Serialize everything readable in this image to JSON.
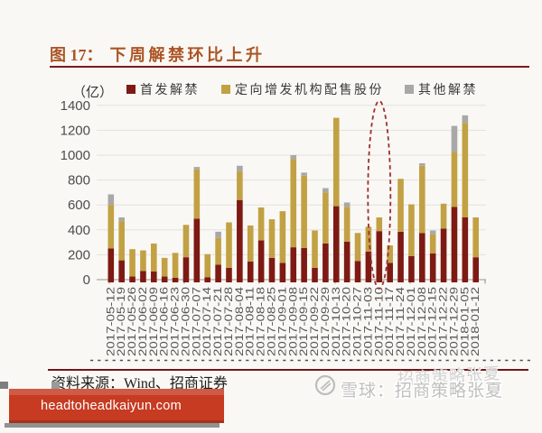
{
  "title": {
    "label": "图 17：",
    "text": "下周解禁环比上升"
  },
  "chart_data": {
    "type": "bar",
    "stacked": true,
    "unit": "（亿）",
    "ylabel": "",
    "xlabel": "",
    "ylim": [
      0,
      1400
    ],
    "y_ticks": [
      0,
      200,
      400,
      600,
      800,
      1000,
      1200,
      1400
    ],
    "grid": true,
    "legend_position": "top",
    "categories": [
      "2017-05-12",
      "2017-05-19",
      "2017-05-26",
      "2017-06-02",
      "2017-06-09",
      "2017-06-16",
      "2017-06-23",
      "2017-06-30",
      "2017-07-07",
      "2017-07-14",
      "2017-07-21",
      "2017-07-28",
      "2017-08-04",
      "2017-08-11",
      "2017-08-18",
      "2017-08-25",
      "2017-09-01",
      "2017-09-08",
      "2017-09-15",
      "2017-09-22",
      "2017-09-29",
      "2017-10-13",
      "2017-10-20",
      "2017-10-27",
      "2017-11-03",
      "2017-11-10",
      "2017-11-17",
      "2017-11-24",
      "2017-12-01",
      "2017-12-08",
      "2017-12-15",
      "2017-12-22",
      "2017-12-29",
      "2018-01-05",
      "2018-01-12"
    ],
    "series": [
      {
        "name": "首发解禁",
        "color": "#7d1a13",
        "values": [
          250,
          155,
          25,
          70,
          65,
          25,
          15,
          180,
          490,
          20,
          120,
          95,
          640,
          145,
          315,
          175,
          135,
          260,
          255,
          95,
          290,
          590,
          305,
          150,
          225,
          390,
          135,
          385,
          190,
          375,
          210,
          410,
          585,
          500,
          180
        ]
      },
      {
        "name": "定向增发机构配售股份",
        "color": "#c2a144",
        "values": [
          350,
          315,
          220,
          165,
          225,
          150,
          200,
          260,
          395,
          185,
          215,
          365,
          230,
          290,
          265,
          310,
          415,
          710,
          580,
          300,
          410,
          710,
          280,
          225,
          200,
          110,
          140,
          425,
          415,
          540,
          155,
          200,
          440,
          760,
          320
        ]
      },
      {
        "name": "其他解禁",
        "color": "#a8a8a8",
        "values": [
          85,
          30,
          0,
          0,
          0,
          0,
          0,
          0,
          20,
          0,
          50,
          0,
          45,
          0,
          0,
          0,
          0,
          30,
          25,
          0,
          35,
          0,
          35,
          0,
          0,
          0,
          0,
          0,
          0,
          20,
          30,
          0,
          210,
          60,
          0
        ]
      }
    ],
    "annotation": {
      "type": "dashed-ellipse",
      "category": "2017-11-10",
      "color": "#9e2f2f"
    }
  },
  "footer": {
    "source": "资料来源：Wind、招商证券",
    "watermark": "雪球：招商策略张夏",
    "watermark_echo": "招商策略张夏",
    "banner": "headtoheadkaiyun.com"
  },
  "colors": {
    "title": "#ac5526",
    "rule": "#7c1a1a",
    "banner_bg": "#c63b22",
    "axis_text": "#4a4a4a"
  }
}
